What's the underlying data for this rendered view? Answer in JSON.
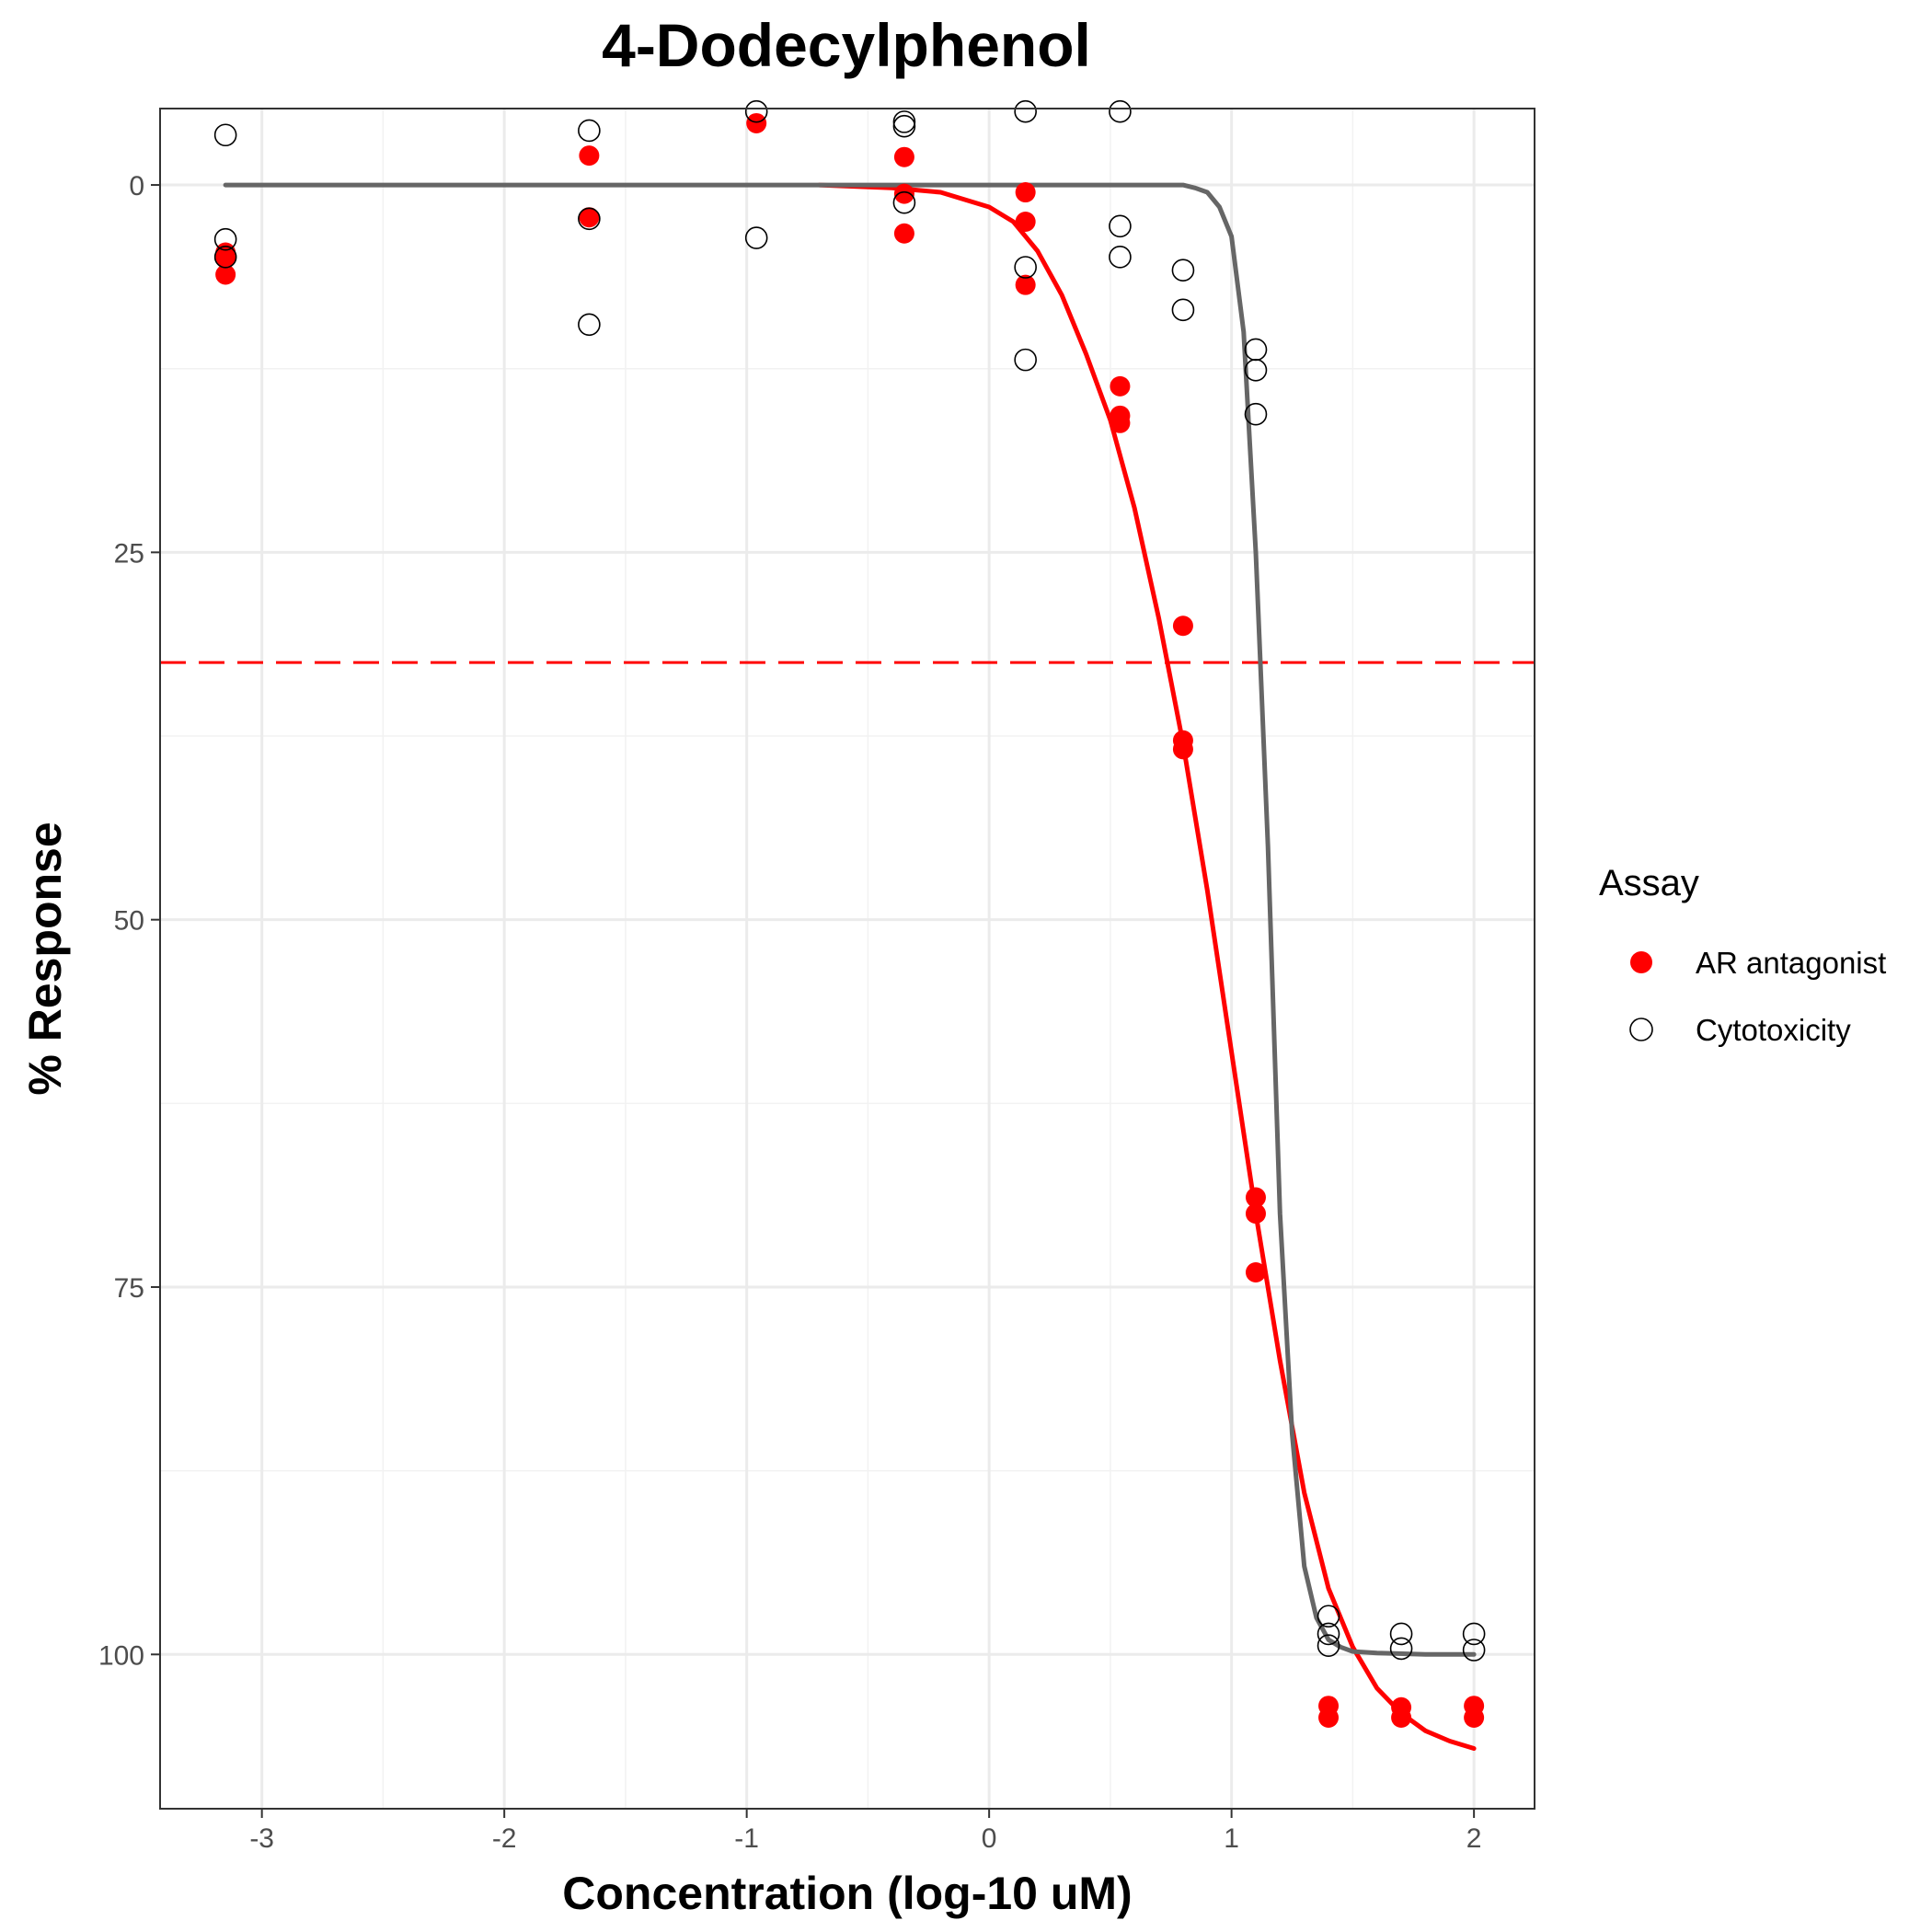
{
  "chart_data": {
    "type": "scatter",
    "title": "4-Dodecylphenol",
    "xlabel": "Concentration (log-10 uM)",
    "ylabel": "% Response",
    "xlim": [
      -3.42,
      2.25
    ],
    "ylim": [
      -5.2,
      110.5
    ],
    "y_reversed": true,
    "x_ticks": [
      -3,
      -2,
      -1,
      0,
      1,
      2
    ],
    "x_tick_labels": [
      "-3",
      "-2",
      "-1",
      "0",
      "1",
      "2"
    ],
    "y_ticks": [
      0,
      25,
      50,
      75,
      100
    ],
    "y_tick_labels": [
      "0",
      "25",
      "50",
      "75",
      "100"
    ],
    "grid": true,
    "legend_title": "Assay",
    "legend_position": "right",
    "reference_line": {
      "y": 32.5,
      "style": "dashed",
      "color": "#ff0000"
    },
    "series": [
      {
        "name": "AR antagonist",
        "marker": "filled-circle",
        "color": "#ff0000",
        "points": [
          [
            -3.15,
            4.6
          ],
          [
            -3.15,
            5.0
          ],
          [
            -3.15,
            6.1
          ],
          [
            -1.65,
            -2.0
          ],
          [
            -1.65,
            2.2
          ],
          [
            -0.96,
            -4.2
          ],
          [
            -0.35,
            -1.9
          ],
          [
            -0.35,
            0.6
          ],
          [
            -0.35,
            3.3
          ],
          [
            0.15,
            0.5
          ],
          [
            0.15,
            2.5
          ],
          [
            0.15,
            6.8
          ],
          [
            0.54,
            13.7
          ],
          [
            0.54,
            15.7
          ],
          [
            0.54,
            16.2
          ],
          [
            0.8,
            30.0
          ],
          [
            0.8,
            37.8
          ],
          [
            0.8,
            38.4
          ],
          [
            1.1,
            68.9
          ],
          [
            1.1,
            70.0
          ],
          [
            1.1,
            74.0
          ],
          [
            1.4,
            103.5
          ],
          [
            1.4,
            104.3
          ],
          [
            1.7,
            103.6
          ],
          [
            1.7,
            104.3
          ],
          [
            2.0,
            103.5
          ],
          [
            2.0,
            104.3
          ]
        ],
        "curve": {
          "color": "#ff0000",
          "x": [
            -0.7,
            -0.4,
            -0.2,
            0.0,
            0.1,
            0.2,
            0.3,
            0.4,
            0.5,
            0.6,
            0.7,
            0.8,
            0.9,
            1.0,
            1.1,
            1.2,
            1.3,
            1.4,
            1.5,
            1.6,
            1.7,
            1.8,
            1.9,
            2.0
          ],
          "y": [
            0.0,
            0.2,
            0.5,
            1.5,
            2.5,
            4.5,
            7.5,
            11.5,
            16.0,
            22.0,
            29.5,
            38.0,
            48.0,
            59.0,
            70.0,
            80.0,
            89.0,
            95.5,
            99.5,
            102.3,
            104.0,
            105.2,
            105.9,
            106.4
          ]
        }
      },
      {
        "name": "Cytotoxicity",
        "marker": "open-circle",
        "color": "#000000",
        "points": [
          [
            -3.15,
            -3.4
          ],
          [
            -3.15,
            3.7
          ],
          [
            -3.15,
            4.9
          ],
          [
            -1.65,
            -3.7
          ],
          [
            -1.65,
            2.3
          ],
          [
            -1.65,
            9.5
          ],
          [
            -0.96,
            -5.0
          ],
          [
            -0.96,
            3.6
          ],
          [
            -0.35,
            -4.3
          ],
          [
            -0.35,
            -4.0
          ],
          [
            -0.35,
            1.2
          ],
          [
            0.15,
            -5.0
          ],
          [
            0.15,
            5.6
          ],
          [
            0.15,
            11.9
          ],
          [
            0.54,
            -5.0
          ],
          [
            0.54,
            2.8
          ],
          [
            0.54,
            4.9
          ],
          [
            0.8,
            5.8
          ],
          [
            0.8,
            8.5
          ],
          [
            1.1,
            11.2
          ],
          [
            1.1,
            12.6
          ],
          [
            1.1,
            15.6
          ],
          [
            1.4,
            97.4
          ],
          [
            1.4,
            98.6
          ],
          [
            1.4,
            99.4
          ],
          [
            1.7,
            98.6
          ],
          [
            1.7,
            99.6
          ],
          [
            2.0,
            98.6
          ],
          [
            2.0,
            99.7
          ]
        ],
        "curve": {
          "color": "#666666",
          "x": [
            -3.15,
            0.8,
            0.85,
            0.9,
            0.95,
            1.0,
            1.05,
            1.1,
            1.15,
            1.2,
            1.25,
            1.3,
            1.35,
            1.4,
            1.45,
            1.5,
            1.6,
            1.8,
            2.0
          ],
          "y": [
            0.0,
            0.0,
            0.2,
            0.5,
            1.5,
            3.5,
            10.0,
            25.0,
            45.0,
            70.0,
            85.0,
            94.0,
            97.5,
            99.0,
            99.5,
            99.8,
            99.9,
            100.0,
            100.0
          ]
        }
      }
    ]
  }
}
